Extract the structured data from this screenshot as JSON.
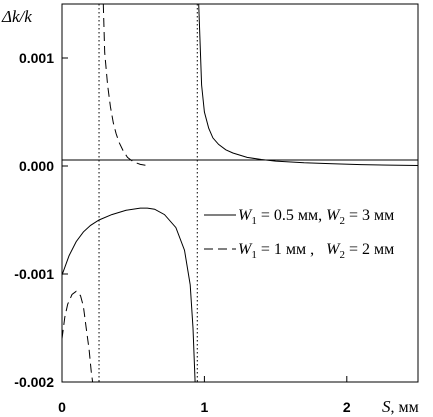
{
  "chart_data": {
    "type": "line",
    "xlim": [
      0,
      2.5
    ],
    "ylim": [
      -0.002,
      0.0015
    ],
    "x_ticks": [
      {
        "value": 0,
        "label": "0"
      },
      {
        "value": 1,
        "label": "1"
      },
      {
        "value": 2,
        "label": "2"
      }
    ],
    "y_ticks": [
      {
        "value": 0.001,
        "label": "0.001"
      },
      {
        "value": 0.0,
        "label": "0.000"
      },
      {
        "value": -0.001,
        "label": "-0.001"
      },
      {
        "value": -0.002,
        "label": "-0.002"
      }
    ],
    "xlabel": {
      "symbol": "S",
      "unit": ", мм"
    },
    "ylabel": "Δk/k",
    "grid": false,
    "legend_placement": "right-middle",
    "vertical_markers": [
      0.26,
      0.95
    ],
    "series": [
      {
        "name": "W1 = 0.5 мм, W2 = 3 мм",
        "legend": {
          "w1_sym": "W",
          "w1_sub": "1",
          "w1_val": " = 0.5 мм, ",
          "w2_sym": "W",
          "w2_sub": "2",
          "w2_val": " = 3 мм"
        },
        "style": "solid",
        "segments": [
          {
            "x": [
              0.96,
              0.98,
              1.0,
              1.03,
              1.06,
              1.1,
              1.15,
              1.2,
              1.3,
              1.4,
              1.5,
              1.7,
              1.9,
              2.1,
              2.3,
              2.5
            ],
            "y": [
              0.0015,
              0.00075,
              0.0005,
              0.00035,
              0.00026,
              0.0002,
              0.00015,
              0.00012,
              8e-05,
              6e-05,
              4.5e-05,
              3e-05,
              2e-05,
              1.3e-05,
              8e-06,
              5e-06
            ]
          },
          {
            "x": [
              0.0,
              0.05,
              0.1,
              0.15,
              0.2,
              0.26,
              0.35,
              0.45,
              0.55,
              0.6,
              0.65,
              0.72,
              0.8,
              0.86,
              0.9,
              0.92,
              0.935
            ],
            "y": [
              -0.00101,
              -0.00083,
              -0.0007,
              -0.00061,
              -0.00055,
              -0.0005,
              -0.00045,
              -0.00041,
              -0.00039,
              -0.00039,
              -0.0004,
              -0.00045,
              -0.00057,
              -0.00078,
              -0.0011,
              -0.0015,
              -0.002
            ]
          }
        ]
      },
      {
        "name": "W1 = 1 мм, W2 = 2 мм",
        "legend": {
          "w1_sym": "W",
          "w1_sub": "1",
          "w1_val": " = 1 мм ,   ",
          "w2_sym": "W",
          "w2_sub": "2",
          "w2_val": " = 2 мм"
        },
        "style": "dashed",
        "segments": [
          {
            "x": [
              0.29,
              0.3,
              0.32,
              0.34,
              0.36,
              0.38,
              0.4,
              0.43,
              0.46,
              0.5,
              0.55,
              0.6
            ],
            "y": [
              0.0015,
              0.00105,
              0.00075,
              0.00055,
              0.0004,
              0.0003,
              0.00022,
              0.00014,
              8e-05,
              4e-05,
              1.5e-05,
              4e-06
            ]
          },
          {
            "x": [
              0.0,
              0.02,
              0.04,
              0.07,
              0.1,
              0.13,
              0.15,
              0.17,
              0.19,
              0.205,
              0.215
            ],
            "y": [
              -0.0016,
              -0.0014,
              -0.00128,
              -0.00119,
              -0.00116,
              -0.0012,
              -0.0013,
              -0.0015,
              -0.0017,
              -0.0019,
              -0.002
            ]
          }
        ]
      }
    ]
  }
}
